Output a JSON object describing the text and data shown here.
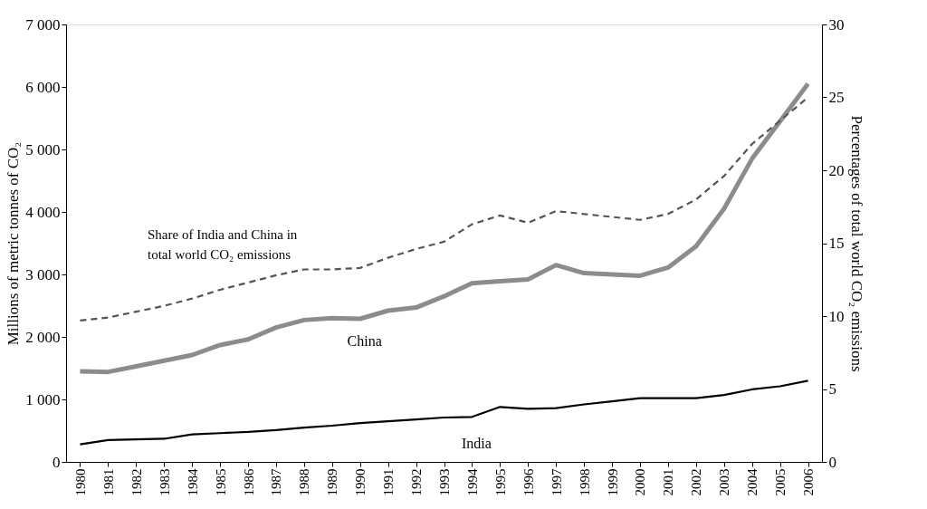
{
  "chart_data": {
    "type": "line",
    "categories": [
      "1980",
      "1981",
      "1982",
      "1983",
      "1984",
      "1985",
      "1986",
      "1987",
      "1988",
      "1989",
      "1990",
      "1991",
      "1992",
      "1993",
      "1994",
      "1995",
      "1996",
      "1997",
      "1998",
      "1999",
      "2000",
      "2001",
      "2002",
      "2003",
      "2004",
      "2005",
      "2006"
    ],
    "ylabel": "Millions of metric tonnes of CO₂",
    "y2label": "Percentages of total world CO₂ emissions",
    "ylim": [
      0,
      7000
    ],
    "yticks": [
      {
        "value": 0,
        "label": "0"
      },
      {
        "value": 1000,
        "label": "1 000"
      },
      {
        "value": 2000,
        "label": "2 000"
      },
      {
        "value": 3000,
        "label": "3 000"
      },
      {
        "value": 4000,
        "label": "4 000"
      },
      {
        "value": 5000,
        "label": "5 000"
      },
      {
        "value": 6000,
        "label": "6 000"
      },
      {
        "value": 7000,
        "label": "7 000"
      }
    ],
    "y2lim": [
      0,
      30
    ],
    "y2ticks": [
      0,
      5,
      10,
      15,
      20,
      25,
      30
    ],
    "grid": false,
    "series": [
      {
        "name": "China",
        "color": "#8c8c8c",
        "line_style": "solid",
        "values": [
          1450,
          1440,
          1530,
          1620,
          1710,
          1870,
          1960,
          2150,
          2270,
          2300,
          2290,
          2420,
          2470,
          2650,
          2860,
          2890,
          2920,
          3150,
          3020,
          3000,
          2980,
          3110,
          3450,
          4050,
          4850,
          5450,
          6050
        ]
      },
      {
        "name": "India",
        "color": "#000000",
        "line_style": "solid",
        "values": [
          280,
          350,
          360,
          370,
          440,
          460,
          480,
          510,
          550,
          580,
          620,
          650,
          680,
          710,
          720,
          880,
          850,
          860,
          920,
          970,
          1020,
          1020,
          1020,
          1070,
          1160,
          1210,
          1300
        ]
      },
      {
        "color": "#555555",
        "axis": "y2",
        "line_style": "dashed",
        "values": [
          9.7,
          9.9,
          10.3,
          10.7,
          11.2,
          11.8,
          12.3,
          12.8,
          13.2,
          13.2,
          13.3,
          14.0,
          14.6,
          15.1,
          16.3,
          16.9,
          16.4,
          17.2,
          17.0,
          16.8,
          16.6,
          17.0,
          18.0,
          19.6,
          21.8,
          23.4,
          25.0
        ]
      }
    ],
    "annotations": [
      "Share of India and China in total world CO₂ emissions"
    ]
  }
}
